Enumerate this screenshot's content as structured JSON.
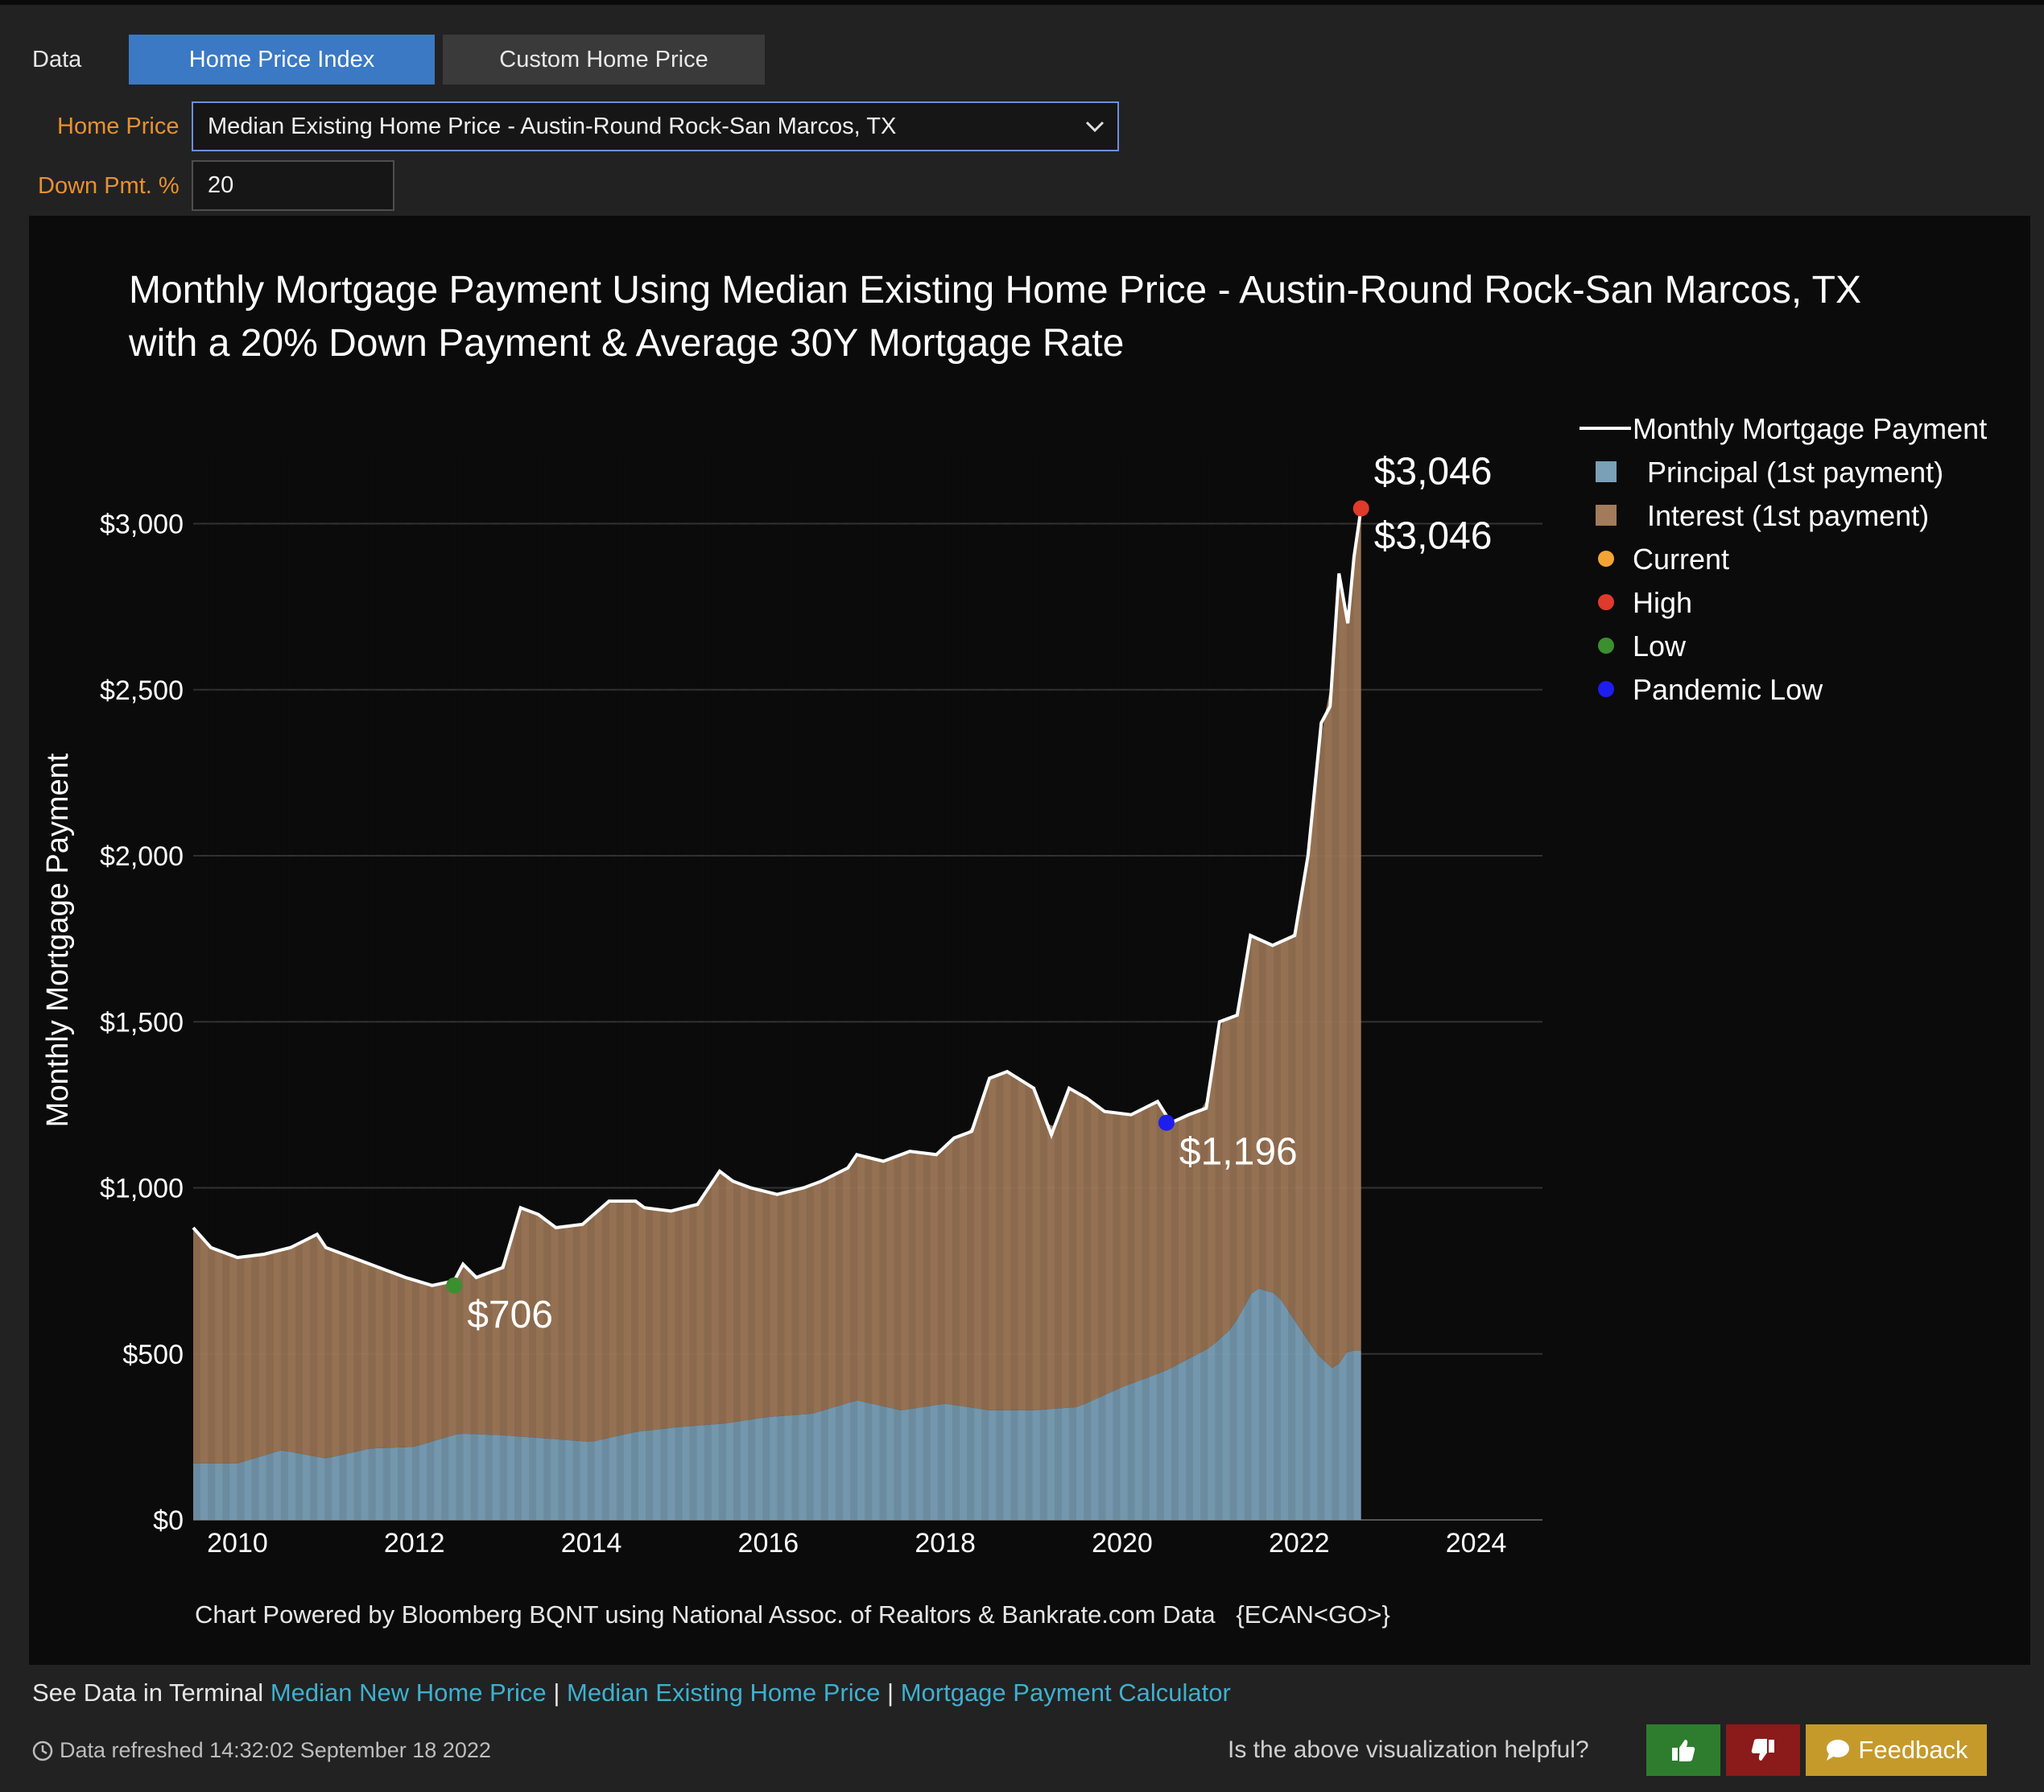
{
  "controls": {
    "data_label": "Data",
    "tab_active": "Home Price Index",
    "tab_inactive": "Custom Home Price",
    "home_price_label": "Home Price",
    "home_price_value": "Median Existing Home Price - Austin-Round Rock-San Marcos, TX",
    "down_pmt_label": "Down Pmt. %",
    "down_pmt_value": "20"
  },
  "chart_data": {
    "type": "area",
    "title_line1": "Monthly Mortgage Payment Using Median Existing Home Price - Austin-Round Rock-San Marcos, TX",
    "title_line2": "with a 20% Down Payment & Average 30Y Mortgage Rate",
    "ylabel": "Monthly Mortgage Payment",
    "xlabel": "",
    "xlim": [
      2009.5,
      2024.75
    ],
    "ylim": [
      0,
      3200
    ],
    "x_ticks": [
      2010,
      2012,
      2014,
      2016,
      2018,
      2020,
      2022,
      2024
    ],
    "y_ticks": [
      0,
      500,
      1000,
      1500,
      2000,
      2500,
      3000
    ],
    "y_tick_labels": [
      "$0",
      "$500",
      "$1,000",
      "$1,500",
      "$2,000",
      "$2,500",
      "$3,000"
    ],
    "grid": true,
    "legend_position": "top-right",
    "legend": [
      "Monthly Mortgage Payment",
      "Principal (1st payment)",
      "Interest (1st payment)",
      "Current",
      "High",
      "Low",
      "Pandemic Low"
    ],
    "colors": {
      "payment": "#ffffff",
      "principal": "#7a9fb6",
      "interest": "#a27b5a",
      "current": "#f3a533",
      "high": "#e03a2c",
      "low": "#3b8f2e",
      "pandemic_low": "#1d1df0"
    },
    "payment_series": {
      "name": "Monthly Mortgage Payment",
      "x": [
        2009.5,
        2009.7,
        2010.0,
        2010.3,
        2010.6,
        2010.9,
        2011.0,
        2011.3,
        2011.6,
        2011.9,
        2012.2,
        2012.45,
        2012.55,
        2012.7,
        2013.0,
        2013.2,
        2013.4,
        2013.6,
        2013.9,
        2014.2,
        2014.5,
        2014.6,
        2014.9,
        2015.2,
        2015.45,
        2015.6,
        2015.8,
        2016.1,
        2016.4,
        2016.6,
        2016.9,
        2017.0,
        2017.3,
        2017.6,
        2017.9,
        2018.1,
        2018.3,
        2018.5,
        2018.7,
        2019.0,
        2019.2,
        2019.4,
        2019.6,
        2019.8,
        2020.1,
        2020.4,
        2020.55,
        2020.75,
        2020.95,
        2021.1,
        2021.3,
        2021.45,
        2021.7,
        2021.95,
        2022.1,
        2022.25,
        2022.35,
        2022.45,
        2022.55,
        2022.62,
        2022.7
      ],
      "y": [
        880,
        820,
        790,
        800,
        820,
        860,
        820,
        790,
        760,
        730,
        706,
        720,
        770,
        730,
        760,
        940,
        920,
        880,
        890,
        960,
        960,
        940,
        930,
        950,
        1050,
        1020,
        1000,
        980,
        1000,
        1020,
        1060,
        1100,
        1080,
        1110,
        1100,
        1150,
        1170,
        1330,
        1350,
        1300,
        1160,
        1300,
        1270,
        1230,
        1220,
        1260,
        1196,
        1220,
        1240,
        1500,
        1520,
        1760,
        1730,
        1760,
        2000,
        2400,
        2450,
        2850,
        2700,
        2900,
        3046
      ]
    },
    "principal_series": {
      "name": "Principal (1st payment)",
      "x": [
        2009.5,
        2010.0,
        2010.5,
        2011.0,
        2011.5,
        2012.0,
        2012.5,
        2013.0,
        2013.5,
        2014.0,
        2014.5,
        2015.0,
        2015.5,
        2016.0,
        2016.5,
        2017.0,
        2017.5,
        2018.0,
        2018.5,
        2019.0,
        2019.5,
        2020.0,
        2020.5,
        2021.0,
        2021.25,
        2021.5,
        2021.75,
        2022.0,
        2022.2,
        2022.4,
        2022.55,
        2022.7
      ],
      "y": [
        170,
        170,
        210,
        185,
        215,
        220,
        260,
        255,
        245,
        235,
        265,
        280,
        290,
        310,
        320,
        360,
        330,
        350,
        330,
        330,
        340,
        400,
        450,
        520,
        580,
        700,
        680,
        580,
        500,
        450,
        510,
        510
      ]
    },
    "markers": [
      {
        "name": "High",
        "x": 2022.7,
        "y": 3046,
        "label": "$3,046"
      },
      {
        "name": "Current",
        "x": 2022.7,
        "y": 3046,
        "label": "$3,046"
      },
      {
        "name": "Low",
        "x": 2012.45,
        "y": 706,
        "label": "$706"
      },
      {
        "name": "Pandemic Low",
        "x": 2020.5,
        "y": 1196,
        "label": "$1,196"
      }
    ],
    "source_note": "Chart Powered by Bloomberg BQNT using National Assoc. of Realtors & Bankrate.com Data   {ECAN<GO>}"
  },
  "footer": {
    "see_data_prefix": "See Data in Terminal",
    "link1": "Median New Home Price",
    "sep": "|",
    "link2": "Median Existing Home Price",
    "link3": "Mortgage Payment Calculator",
    "refreshed": "Data refreshed 14:32:02 September 18 2022",
    "helpful_question": "Is the above visualization helpful?",
    "feedback_label": "Feedback"
  }
}
